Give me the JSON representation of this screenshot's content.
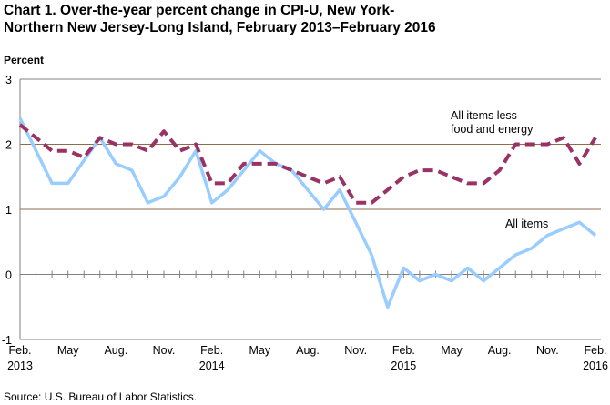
{
  "chart_data": {
    "type": "line",
    "title": "Chart 1.  Over-the-year percent change in CPI-U, New York-\nNorthern New Jersey-Long Island, February 2013–February 2016",
    "ylabel": "Percent",
    "ylim": [
      -1,
      3
    ],
    "yticks": [
      "3",
      "2",
      "1",
      "0",
      "-1"
    ],
    "xtick_labels": [
      [
        "Feb.",
        "2013"
      ],
      [
        "May",
        ""
      ],
      [
        "Aug.",
        ""
      ],
      [
        "Nov.",
        ""
      ],
      [
        "Feb.",
        "2014"
      ],
      [
        "May",
        ""
      ],
      [
        "Aug.",
        ""
      ],
      [
        "Nov.",
        ""
      ],
      [
        "Feb.",
        "2015"
      ],
      [
        "May",
        ""
      ],
      [
        "Aug.",
        ""
      ],
      [
        "Nov.",
        ""
      ],
      [
        "Feb.",
        "2016"
      ]
    ],
    "x_start": "Feb. 2013",
    "x_end": "Feb. 2016",
    "series": [
      {
        "name": "All items",
        "color": "#99ccff",
        "style": "solid",
        "values": [
          2.4,
          1.9,
          1.4,
          1.4,
          1.75,
          2.1,
          1.7,
          1.6,
          1.1,
          1.2,
          1.5,
          1.9,
          1.1,
          1.3,
          1.6,
          1.9,
          1.7,
          1.6,
          1.3,
          1.0,
          1.3,
          0.8,
          0.3,
          -0.5,
          0.1,
          -0.1,
          0.0,
          -0.1,
          0.1,
          -0.1,
          0.1,
          0.3,
          0.4,
          0.6,
          0.7,
          0.8,
          0.6
        ]
      },
      {
        "name": "All items less\nfood and energy",
        "color": "#993366",
        "style": "dashed",
        "values": [
          2.3,
          2.1,
          1.9,
          1.9,
          1.8,
          2.1,
          2.0,
          2.0,
          1.9,
          2.2,
          1.9,
          2.0,
          1.4,
          1.4,
          1.7,
          1.7,
          1.7,
          1.6,
          1.5,
          1.4,
          1.5,
          1.1,
          1.1,
          1.3,
          1.5,
          1.6,
          1.6,
          1.5,
          1.4,
          1.4,
          1.6,
          2.0,
          2.0,
          2.0,
          2.1,
          1.7,
          2.1
        ]
      }
    ],
    "grid": true
  },
  "source": "Source: U.S. Bureau of Labor Statistics."
}
